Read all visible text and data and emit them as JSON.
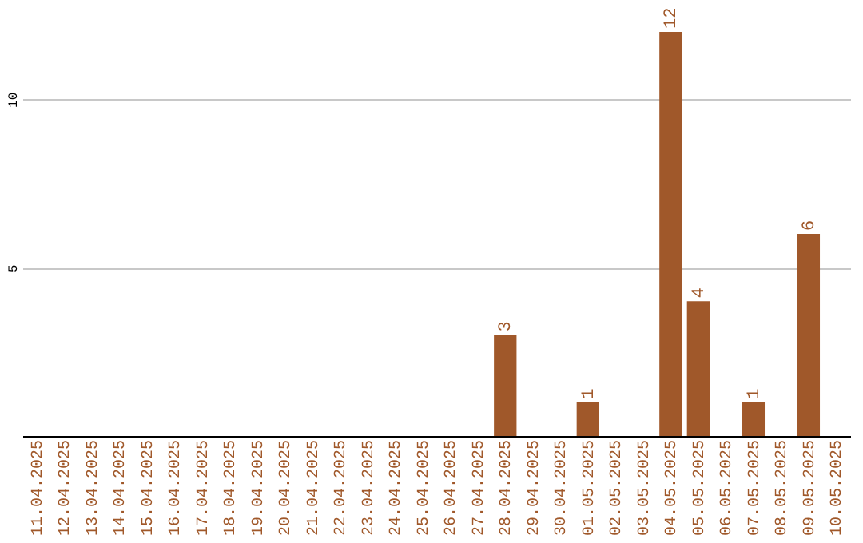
{
  "chart_data": {
    "type": "bar",
    "categories": [
      "11.04.2025",
      "12.04.2025",
      "13.04.2025",
      "14.04.2025",
      "15.04.2025",
      "16.04.2025",
      "17.04.2025",
      "18.04.2025",
      "19.04.2025",
      "20.04.2025",
      "21.04.2025",
      "22.04.2025",
      "23.04.2025",
      "24.04.2025",
      "25.04.2025",
      "26.04.2025",
      "27.04.2025",
      "28.04.2025",
      "29.04.2025",
      "30.04.2025",
      "01.05.2025",
      "02.05.2025",
      "03.05.2025",
      "04.05.2025",
      "05.05.2025",
      "06.05.2025",
      "07.05.2025",
      "08.05.2025",
      "09.05.2025",
      "10.05.2025"
    ],
    "values": [
      0,
      0,
      0,
      0,
      0,
      0,
      0,
      0,
      0,
      0,
      0,
      0,
      0,
      0,
      0,
      0,
      0,
      3,
      0,
      0,
      1,
      0,
      0,
      12,
      4,
      0,
      1,
      0,
      6,
      0
    ],
    "value_labels": [
      null,
      null,
      null,
      null,
      null,
      null,
      null,
      null,
      null,
      null,
      null,
      null,
      null,
      null,
      null,
      null,
      null,
      "3",
      null,
      null,
      "1",
      null,
      null,
      "12",
      "4",
      null,
      "1",
      null,
      "6",
      null
    ],
    "color": "#a0582a",
    "ylim": [
      0,
      12
    ],
    "yticks": [
      5,
      10
    ],
    "grid": "y"
  }
}
